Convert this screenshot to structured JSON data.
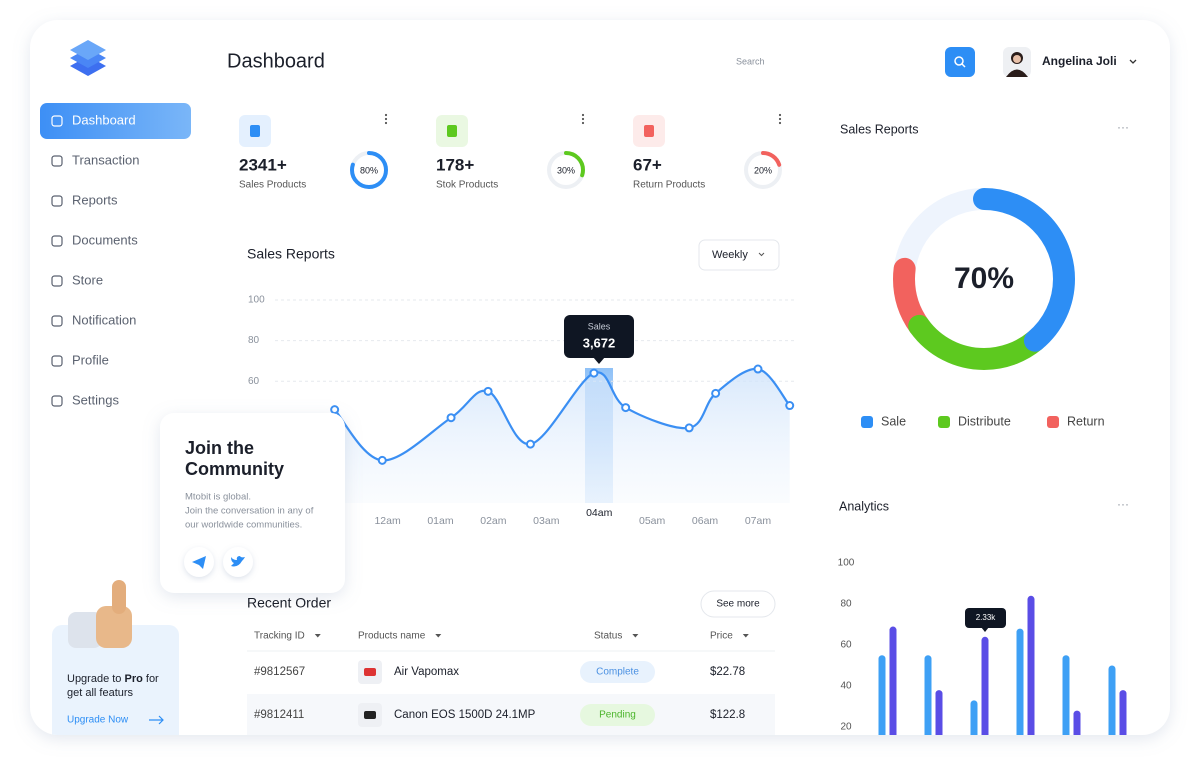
{
  "header": {
    "title": "Dashboard",
    "search_placeholder": "Search",
    "user_name": "Angelina Joli"
  },
  "sidebar": {
    "menu": [
      "Dashboard",
      "Transaction",
      "Reports",
      "Documents",
      "Store",
      "Notification",
      "Profile",
      "Settings"
    ],
    "community": {
      "title_lines": [
        "Join the",
        "Community"
      ],
      "text_lines": [
        "Mtobit is global.",
        "Join the conversation in any of",
        "our worldwide communities."
      ]
    },
    "upgrade": {
      "text_parts": [
        "Upgrade to ",
        "Pro",
        " for"
      ],
      "text_line2": "get all featurs",
      "link": "Upgrade Now"
    }
  },
  "stats": [
    {
      "value": "2341+",
      "label": "Sales Products",
      "percent": 80,
      "percent_label": "80%",
      "color": "#2d8ef5"
    },
    {
      "value": "178+",
      "label": "Stok Products",
      "percent": 30,
      "percent_label": "30%",
      "color": "#5dc91f"
    },
    {
      "value": "67+",
      "label": "Return Products",
      "percent": 20,
      "percent_label": "20%",
      "color": "#f2625e"
    }
  ],
  "sales_chart": {
    "type": "line",
    "title": "Sales Reports",
    "period": "Weekly",
    "x": [
      0,
      0.9,
      2.2,
      2.9,
      3.7,
      4.9,
      5.5,
      6.7,
      7.2,
      8.0,
      8.6
    ],
    "values": [
      46,
      21,
      42,
      55,
      29,
      64,
      47,
      37,
      54,
      66,
      48
    ],
    "xlim": [
      -1.6,
      8.7
    ],
    "xticks": [
      {
        "value": 1,
        "label": "12am"
      },
      {
        "value": 2,
        "label": "01am"
      },
      {
        "value": 3,
        "label": "02am"
      },
      {
        "value": 4,
        "label": "03am"
      },
      {
        "value": 5,
        "label": "04am"
      },
      {
        "value": 6,
        "label": "05am"
      },
      {
        "value": 7,
        "label": "06am"
      },
      {
        "value": 8,
        "label": "07am"
      }
    ],
    "ylim": [
      0,
      100
    ],
    "yticks": [
      60,
      80,
      100
    ],
    "grid": true,
    "color": "#3b8ff3",
    "tooltip": {
      "label": "Sales",
      "value": "3,672"
    }
  },
  "recent_orders": {
    "title": "Recent Order",
    "button": "See more",
    "columns": [
      "Tracking ID",
      "Products name",
      "Status",
      "Price"
    ],
    "rows": [
      [
        "#9812567",
        "Air Vapomax",
        "Complete",
        "$22.78"
      ],
      [
        "#9812411",
        "Canon EOS 1500D 24.1MP",
        "Pending",
        "$122.8"
      ]
    ]
  },
  "sales_donut": {
    "type": "pie",
    "title": "Sales Reports",
    "center_label": "70%",
    "series": [
      {
        "name": "Sale",
        "color": "#2d8ef5",
        "value": 39
      },
      {
        "name": "Distribute",
        "color": "#5dc91f",
        "value": 26
      },
      {
        "name": "Return",
        "color": "#f2625e",
        "value": 12
      }
    ]
  },
  "analytics": {
    "type": "bar",
    "title": "Analytics",
    "ylim": [
      0,
      100
    ],
    "yticks": [
      20,
      40,
      60,
      80,
      100
    ],
    "series": [
      {
        "color": "#3ea0f5",
        "values": [
          55,
          55,
          33,
          68,
          55,
          50
        ]
      },
      {
        "color": "#5a4de6",
        "values": [
          69,
          38,
          64,
          84,
          28,
          38
        ]
      }
    ],
    "tooltip": "2.33k"
  }
}
